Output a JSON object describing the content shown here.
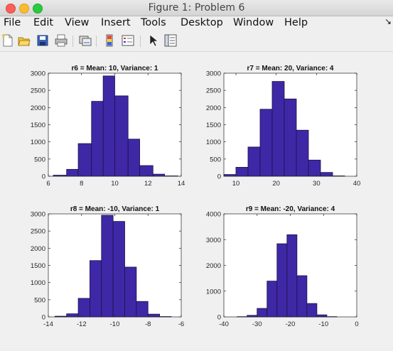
{
  "window": {
    "title": "Figure 1: Problem 6"
  },
  "menu": [
    "File",
    "Edit",
    "View",
    "Insert",
    "Tools",
    "Desktop",
    "Window",
    "Help"
  ],
  "toolbar": {
    "icons": [
      "new-figure-icon",
      "open-file-icon",
      "save-icon",
      "print-icon",
      "link-plot-icon",
      "insert-colorbar-icon",
      "insert-legend-icon",
      "pointer-icon",
      "property-inspector-icon"
    ]
  },
  "colors": {
    "bar_fill": "#3f28a6",
    "bar_edge": "#1a1246"
  },
  "chart_data": [
    {
      "type": "bar",
      "title": "r6 = Mean: 10, Variance: 1",
      "bin_edges": [
        6.3,
        7.1,
        7.8,
        8.6,
        9.3,
        10.0,
        10.8,
        11.5,
        12.3,
        13.0,
        13.8
      ],
      "values": [
        30,
        200,
        950,
        2180,
        2920,
        2340,
        1080,
        310,
        60,
        10
      ],
      "xlim": [
        6,
        14
      ],
      "ylim": [
        0,
        3000
      ],
      "xticks": [
        6,
        8,
        10,
        12,
        14
      ],
      "yticks": [
        0,
        500,
        1000,
        1500,
        2000,
        2500,
        3000
      ],
      "xlabel": "",
      "ylabel": ""
    },
    {
      "type": "bar",
      "title": "r7 = Mean: 20, Variance: 4",
      "bin_edges": [
        7.0,
        10.0,
        13.0,
        16.0,
        19.0,
        22.0,
        25.0,
        28.0,
        31.0,
        34.0,
        37.0
      ],
      "values": [
        50,
        260,
        850,
        1950,
        2760,
        2250,
        1340,
        470,
        110,
        10
      ],
      "xlim": [
        7,
        40
      ],
      "ylim": [
        0,
        3000
      ],
      "xticks": [
        10,
        20,
        30,
        40
      ],
      "yticks": [
        0,
        500,
        1000,
        1500,
        2000,
        2500,
        3000
      ],
      "xlabel": "",
      "ylabel": ""
    },
    {
      "type": "bar",
      "title": "r8 = Mean: -10, Variance: 1",
      "bin_edges": [
        -13.6,
        -12.9,
        -12.2,
        -11.5,
        -10.8,
        -10.1,
        -9.4,
        -8.7,
        -8.0,
        -7.3,
        -6.6
      ],
      "values": [
        20,
        90,
        540,
        1640,
        2960,
        2780,
        1450,
        450,
        80,
        10
      ],
      "xlim": [
        -14,
        -6
      ],
      "ylim": [
        0,
        3000
      ],
      "xticks": [
        -14,
        -12,
        -10,
        -8,
        -6
      ],
      "yticks": [
        0,
        500,
        1000,
        1500,
        2000,
        2500,
        3000
      ],
      "xlabel": "",
      "ylabel": ""
    },
    {
      "type": "bar",
      "title": "r9 = Mean: -20, Variance: 4",
      "bin_edges": [
        -36.0,
        -33.0,
        -30.0,
        -27.0,
        -24.0,
        -21.0,
        -18.0,
        -15.0,
        -12.0,
        -9.0,
        -6.0
      ],
      "values": [
        10,
        60,
        330,
        1390,
        2840,
        3190,
        1600,
        520,
        80,
        10
      ],
      "xlim": [
        -40,
        0
      ],
      "ylim": [
        0,
        4000
      ],
      "xticks": [
        -40,
        -30,
        -20,
        -10,
        0
      ],
      "yticks": [
        0,
        1000,
        2000,
        3000,
        4000
      ],
      "xlabel": "",
      "ylabel": ""
    }
  ]
}
